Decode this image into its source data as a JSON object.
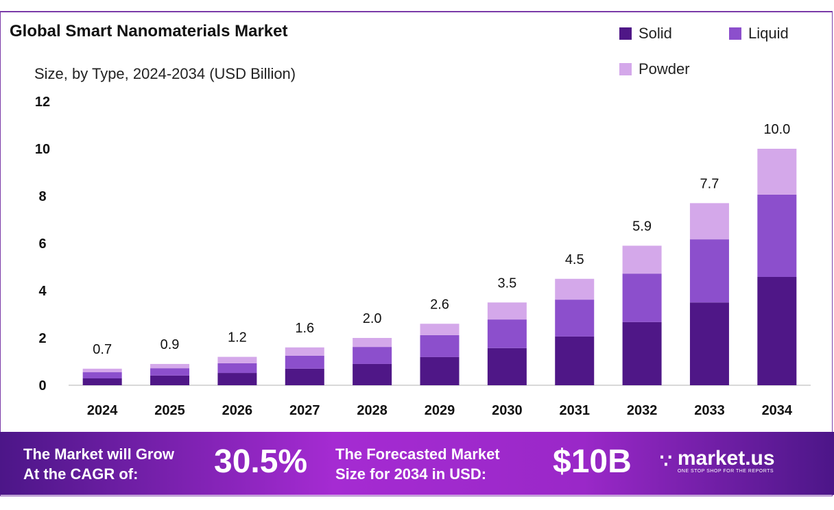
{
  "chart_data": {
    "type": "bar",
    "stacked": true,
    "title": "Global Smart Nanomaterials Market",
    "subtitle": "Size, by Type, 2024-2034 (USD Billion)",
    "categories": [
      "2024",
      "2025",
      "2026",
      "2027",
      "2028",
      "2029",
      "2030",
      "2031",
      "2032",
      "2033",
      "2034"
    ],
    "series": [
      {
        "name": "Solid",
        "color": "#4f1787",
        "values": [
          0.29,
          0.41,
          0.52,
          0.7,
          0.9,
          1.19,
          1.57,
          2.06,
          2.67,
          3.5,
          4.58
        ]
      },
      {
        "name": "Liquid",
        "color": "#8c4fcc",
        "values": [
          0.26,
          0.31,
          0.41,
          0.55,
          0.72,
          0.93,
          1.21,
          1.56,
          2.05,
          2.67,
          3.48
        ]
      },
      {
        "name": "Powder",
        "color": "#d4a8ea",
        "values": [
          0.15,
          0.18,
          0.27,
          0.35,
          0.38,
          0.48,
          0.72,
          0.88,
          1.18,
          1.53,
          1.94
        ]
      }
    ],
    "totals": [
      "0.7",
      "0.9",
      "1.2",
      "1.6",
      "2.0",
      "2.6",
      "3.5",
      "4.5",
      "5.9",
      "7.7",
      "10.0"
    ],
    "ylim": [
      0,
      12
    ],
    "yticks": [
      "0",
      "2",
      "4",
      "6",
      "8",
      "10",
      "12"
    ],
    "grid": false,
    "legend_position": "top-right"
  },
  "banner": {
    "cagr_text": "The Market will Grow\nAt the CAGR of:",
    "cagr_line1": "The Market will Grow",
    "cagr_line2": "At the CAGR of:",
    "cagr_value": "30.5%",
    "forecast_line1": "The Forecasted Market",
    "forecast_line2": "Size for 2034 in USD:",
    "forecast_value": "$10B",
    "logo_name": "market.us",
    "logo_tagline": "ONE STOP SHOP FOR THE REPORTS"
  }
}
